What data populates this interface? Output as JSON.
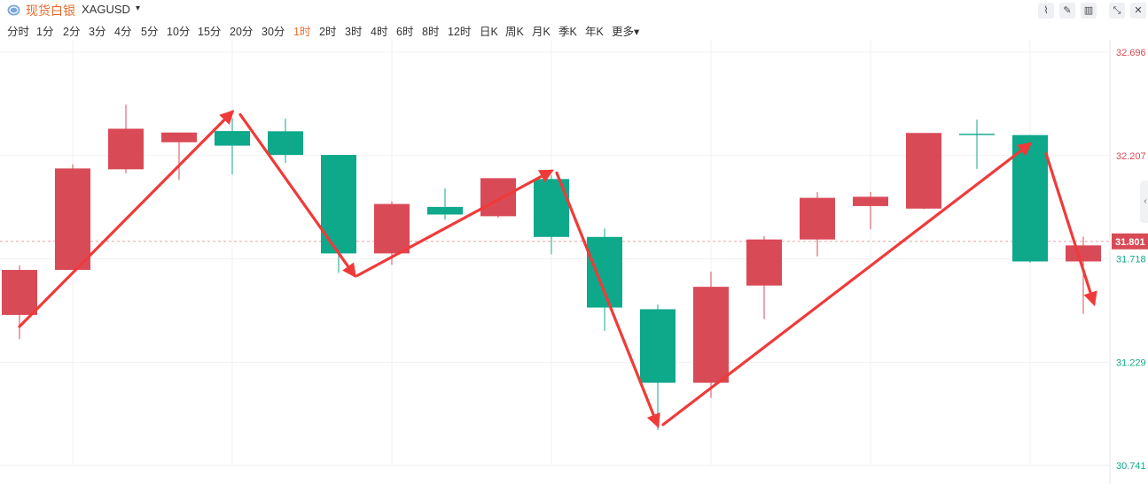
{
  "header": {
    "symbol_name": "现货白银",
    "symbol_code": "XAGUSD",
    "caret": "▾"
  },
  "timeframes": [
    {
      "label": "分时",
      "active": false
    },
    {
      "label": "1分",
      "active": false
    },
    {
      "label": "2分",
      "active": false
    },
    {
      "label": "3分",
      "active": false
    },
    {
      "label": "4分",
      "active": false
    },
    {
      "label": "5分",
      "active": false
    },
    {
      "label": "10分",
      "active": false
    },
    {
      "label": "15分",
      "active": false
    },
    {
      "label": "20分",
      "active": false
    },
    {
      "label": "30分",
      "active": false
    },
    {
      "label": "1时",
      "active": true
    },
    {
      "label": "2时",
      "active": false
    },
    {
      "label": "3时",
      "active": false
    },
    {
      "label": "4时",
      "active": false
    },
    {
      "label": "6时",
      "active": false
    },
    {
      "label": "8时",
      "active": false
    },
    {
      "label": "12时",
      "active": false
    },
    {
      "label": "日K",
      "active": false
    },
    {
      "label": "周K",
      "active": false
    },
    {
      "label": "月K",
      "active": false
    },
    {
      "label": "季K",
      "active": false
    },
    {
      "label": "年K",
      "active": false
    },
    {
      "label": "更多▾",
      "active": false
    }
  ],
  "toolbar": [
    {
      "name": "line-chart-icon",
      "glyph": "⌇"
    },
    {
      "name": "pencil-icon",
      "glyph": "✎"
    },
    {
      "name": "candlestick-icon",
      "glyph": "▥"
    },
    {
      "name": "collapse-icon",
      "glyph": "⤡"
    },
    {
      "name": "close-icon",
      "glyph": "✕"
    }
  ],
  "colors": {
    "up": "#d94a57",
    "down": "#0ea88a",
    "arrow": "#f03a3a",
    "grid": "#f0f1f3",
    "axis_up_text": "#d94a57",
    "axis_down_text": "#0ea88a",
    "current_bg": "#d94a57"
  },
  "chart_data": {
    "type": "candlestick",
    "ylim": [
      30.741,
      32.696
    ],
    "yticks": [
      {
        "label": "32.696",
        "value": 32.696
      },
      {
        "label": "32.207",
        "value": 32.207
      },
      {
        "label": "31.718",
        "value": 31.718
      },
      {
        "label": "31.229",
        "value": 31.229
      },
      {
        "label": "30.741",
        "value": 30.741
      }
    ],
    "current_price": {
      "label": "31.801",
      "value": 31.801
    },
    "candles": [
      {
        "open": 31.453,
        "high": 31.688,
        "low": 31.338,
        "close": 31.666
      },
      {
        "open": 31.666,
        "high": 32.166,
        "low": 31.666,
        "close": 32.146
      },
      {
        "open": 32.142,
        "high": 32.448,
        "low": 32.123,
        "close": 32.334
      },
      {
        "open": 32.27,
        "high": 32.306,
        "low": 32.092,
        "close": 32.316
      },
      {
        "open": 32.323,
        "high": 32.384,
        "low": 32.118,
        "close": 32.254
      },
      {
        "open": 32.322,
        "high": 32.382,
        "low": 32.172,
        "close": 32.21
      },
      {
        "open": 32.21,
        "high": 32.21,
        "low": 31.652,
        "close": 31.744
      },
      {
        "open": 31.744,
        "high": 31.99,
        "low": 31.69,
        "close": 31.978
      },
      {
        "open": 31.964,
        "high": 32.052,
        "low": 31.903,
        "close": 31.928
      },
      {
        "open": 31.92,
        "high": 32.083,
        "low": 31.913,
        "close": 32.1
      },
      {
        "open": 32.096,
        "high": 32.114,
        "low": 31.74,
        "close": 31.822
      },
      {
        "open": 31.822,
        "high": 31.862,
        "low": 31.378,
        "close": 31.488
      },
      {
        "open": 31.48,
        "high": 31.502,
        "low": 30.909,
        "close": 31.132
      },
      {
        "open": 31.132,
        "high": 31.658,
        "low": 31.06,
        "close": 31.586
      },
      {
        "open": 31.592,
        "high": 31.826,
        "low": 31.433,
        "close": 31.81
      },
      {
        "open": 31.81,
        "high": 32.034,
        "low": 31.73,
        "close": 32.007
      },
      {
        "open": 31.968,
        "high": 32.035,
        "low": 31.858,
        "close": 32.012
      },
      {
        "open": 31.956,
        "high": 32.312,
        "low": 31.953,
        "close": 32.314
      },
      {
        "open": 32.31,
        "high": 32.377,
        "low": 32.144,
        "close": 32.304
      },
      {
        "open": 32.304,
        "high": 32.304,
        "low": 31.7,
        "close": 31.706
      },
      {
        "open": 31.706,
        "high": 31.823,
        "low": 31.458,
        "close": 31.782
      }
    ],
    "arrows": [
      {
        "from": [
          0,
          31.398
        ],
        "to": [
          4,
          32.414
        ],
        "head": true
      },
      {
        "from": [
          4.15,
          32.401
        ],
        "to": [
          6.3,
          31.639
        ],
        "head": true
      },
      {
        "from": [
          6.35,
          31.639
        ],
        "to": [
          10.0,
          32.134
        ],
        "head": true
      },
      {
        "from": [
          10.1,
          32.125
        ],
        "to": [
          12.0,
          30.93
        ],
        "head": true
      },
      {
        "from": [
          12.1,
          30.934
        ],
        "to": [
          19.0,
          32.263
        ],
        "head": true
      },
      {
        "from": [
          19.3,
          32.216
        ],
        "to": [
          20.2,
          31.507
        ],
        "head": true
      }
    ]
  }
}
